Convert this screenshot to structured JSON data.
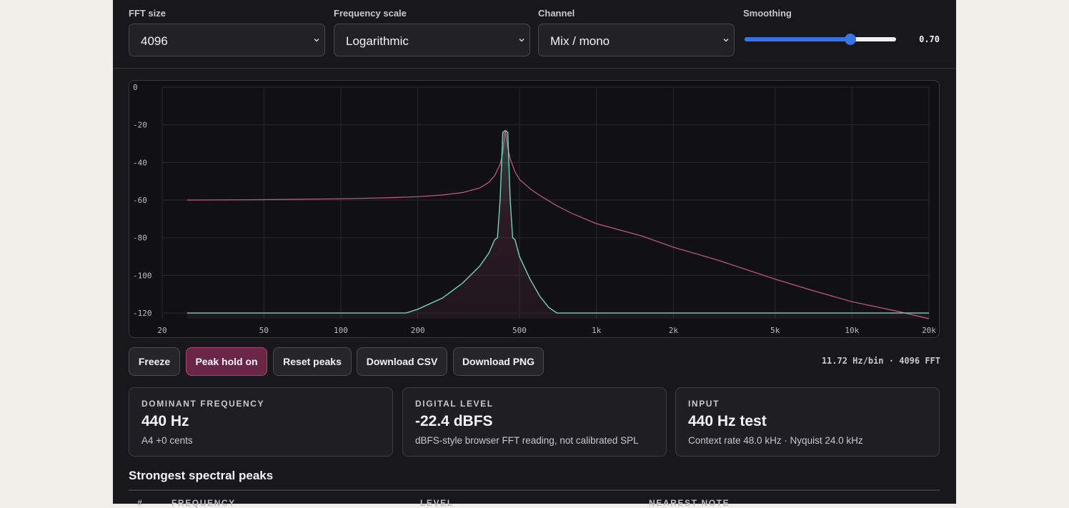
{
  "controls": {
    "fft_size": {
      "label": "FFT size",
      "value": "4096"
    },
    "frequency_scale": {
      "label": "Frequency scale",
      "value": "Logarithmic"
    },
    "channel": {
      "label": "Channel",
      "value": "Mix / mono"
    },
    "smoothing": {
      "label": "Smoothing",
      "value": 0.7,
      "value_text": "0.70",
      "min": 0,
      "max": 1
    }
  },
  "chart_data": {
    "type": "line",
    "x_scale": "log",
    "xlim": [
      20,
      20000
    ],
    "ylim": [
      -123,
      0
    ],
    "x_ticks": [
      "20",
      "50",
      "100",
      "200",
      "500",
      "1k",
      "2k",
      "5k",
      "10k",
      "20k"
    ],
    "y_ticks": [
      "0",
      "-20",
      "-40",
      "-60",
      "-80",
      "-100",
      "-120"
    ],
    "grid": true,
    "series": [
      {
        "color": "#c75a87",
        "x": [
          25,
          50,
          100,
          150,
          200,
          250,
          300,
          350,
          380,
          400,
          420,
          430,
          440,
          450,
          460,
          480,
          500,
          550,
          600,
          700,
          800,
          1000,
          1500,
          2000,
          3000,
          5000,
          7000,
          10000,
          15000,
          20000
        ],
        "y": [
          -60,
          -59.8,
          -59.3,
          -58.8,
          -58.2,
          -57.3,
          -56,
          -53.5,
          -50.5,
          -47,
          -41,
          -35,
          -23,
          -32,
          -38,
          -45,
          -49,
          -54,
          -57.5,
          -63,
          -67,
          -72.5,
          -79,
          -85,
          -92,
          -102,
          -108,
          -114,
          -119,
          -123
        ]
      },
      {
        "color": "#74d4b4",
        "x": [
          25,
          100,
          180,
          200,
          250,
          300,
          350,
          380,
          400,
          410,
          420,
          430,
          440,
          450,
          460,
          470,
          480,
          500,
          550,
          600,
          650,
          700,
          800,
          1000,
          5000,
          20000
        ],
        "y": [
          -120,
          -120,
          -120,
          -118,
          -112,
          -104,
          -95,
          -88,
          -81,
          -80,
          -60,
          -24,
          -23,
          -24,
          -60,
          -80,
          -81,
          -90,
          -102,
          -111,
          -117,
          -120,
          -120,
          -120,
          -120,
          -120
        ]
      }
    ]
  },
  "actions": {
    "freeze": "Freeze",
    "peak_hold": "Peak hold on",
    "reset_peaks": "Reset peaks",
    "download_csv": "Download CSV",
    "download_png": "Download PNG"
  },
  "bin_info": "11.72 Hz/bin · 4096 FFT",
  "cards": {
    "dominant": {
      "label": "DOMINANT FREQUENCY",
      "value": "440 Hz",
      "sub": "A4 +0 cents"
    },
    "level": {
      "label": "DIGITAL LEVEL",
      "value": "-22.4 dBFS",
      "sub": "dBFS-style browser FFT reading, not calibrated SPL"
    },
    "input": {
      "label": "INPUT",
      "value": "440 Hz test",
      "sub": "Context rate 48.0 kHz · Nyquist 24.0 kHz"
    }
  },
  "peaks": {
    "title": "Strongest spectral peaks",
    "columns": [
      "#",
      "FREQUENCY",
      "LEVEL",
      "NEAREST NOTE"
    ]
  },
  "colors": {
    "panel": "#18171b",
    "accent": "#3a72e6",
    "peak_hold": "#6a2745",
    "peak_line": "#c75a87",
    "live_line": "#74d4b4"
  }
}
